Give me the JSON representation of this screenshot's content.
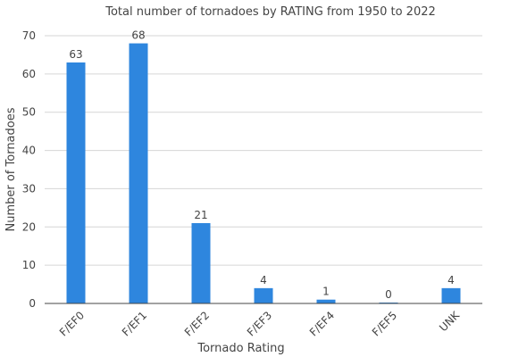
{
  "chart_data": {
    "type": "bar",
    "title": "Total number of tornadoes by RATING from 1950 to 2022",
    "xlabel": "Tornado Rating",
    "ylabel": "Number of Tornadoes",
    "categories": [
      "F/EF0",
      "F/EF1",
      "F/EF2",
      "F/EF3",
      "F/EF4",
      "F/EF5",
      "UNK"
    ],
    "values": [
      63,
      68,
      21,
      4,
      1,
      0,
      4
    ],
    "ylim": [
      0,
      70
    ],
    "yticks": [
      0,
      10,
      20,
      30,
      40,
      50,
      60,
      70
    ],
    "grid": true,
    "legend": "none",
    "bar_color": "#2e86de"
  }
}
